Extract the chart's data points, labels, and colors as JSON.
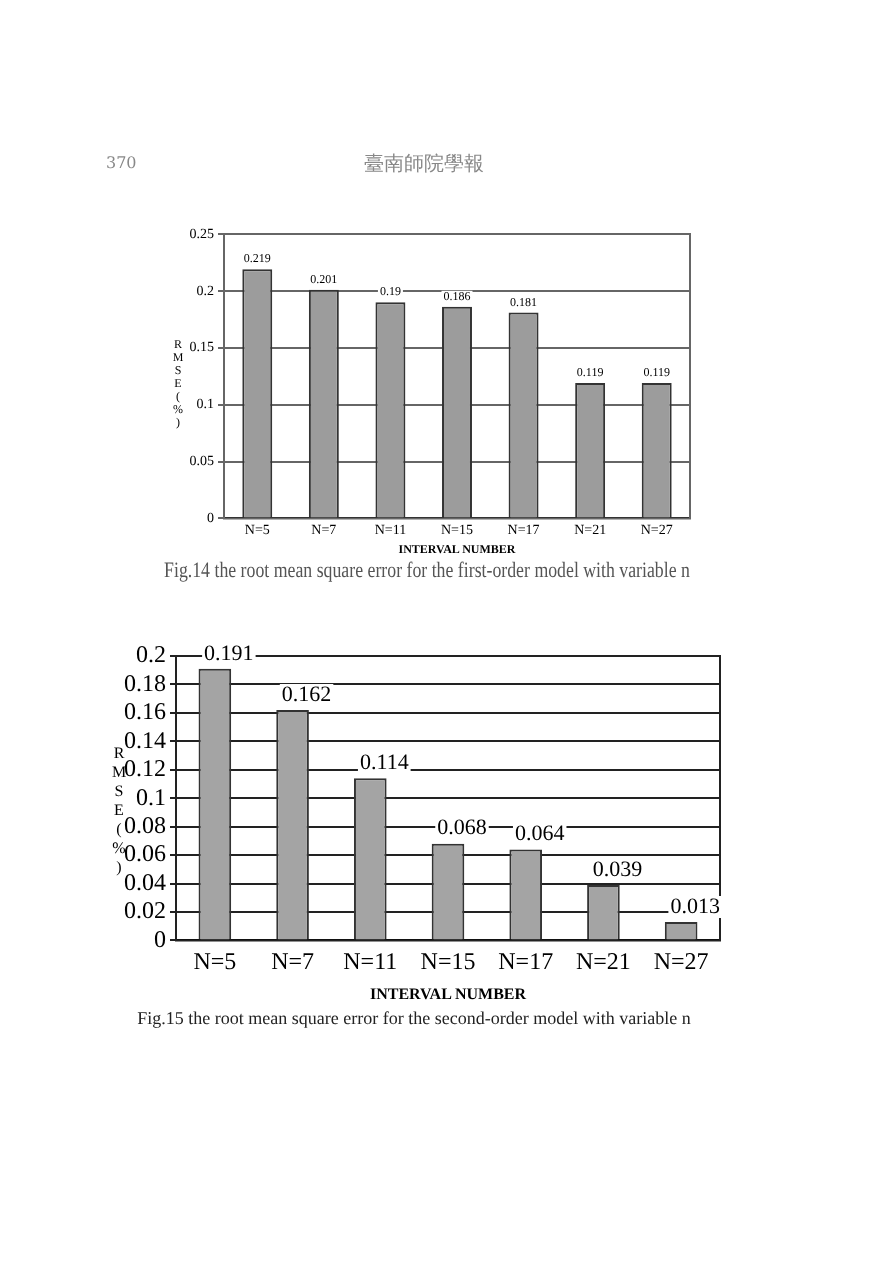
{
  "chart_data": [
    {
      "type": "bar",
      "title": "Fig.14 the root mean square error for the first-order model with variable n",
      "xlabel": "INTERVAL NUMBER",
      "ylabel": "RMSE(%)",
      "annotations": [
        "370",
        "臺南師院學報"
      ],
      "categories": [
        "N=5",
        "N=7",
        "N=11",
        "N=15",
        "N=17",
        "N=21",
        "N=27"
      ],
      "values": [
        0.219,
        0.201,
        0.19,
        0.186,
        0.181,
        0.119,
        0.119
      ],
      "color": "#9c9c9c",
      "ylim": [
        0,
        0.25
      ],
      "yticks": [
        0,
        0.05,
        0.1,
        0.15,
        0.2,
        0.25
      ],
      "grid": "y",
      "data_labels": true
    },
    {
      "type": "bar",
      "title": "Fig.15 the root mean square error for the second-order model with variable n",
      "xlabel": "INTERVAL NUMBER",
      "ylabel": "RMSE(%)",
      "categories": [
        "N=5",
        "N=7",
        "N=11",
        "N=15",
        "N=17",
        "N=21",
        "N=27"
      ],
      "values": [
        0.191,
        0.162,
        0.114,
        0.068,
        0.064,
        0.039,
        0.013
      ],
      "color": "#a4a4a4",
      "ylim": [
        0,
        0.2
      ],
      "yticks": [
        0,
        0.02,
        0.04,
        0.06,
        0.08,
        0.1,
        0.12,
        0.14,
        0.16,
        0.18,
        0.2
      ],
      "grid": "y",
      "data_labels": true
    }
  ]
}
